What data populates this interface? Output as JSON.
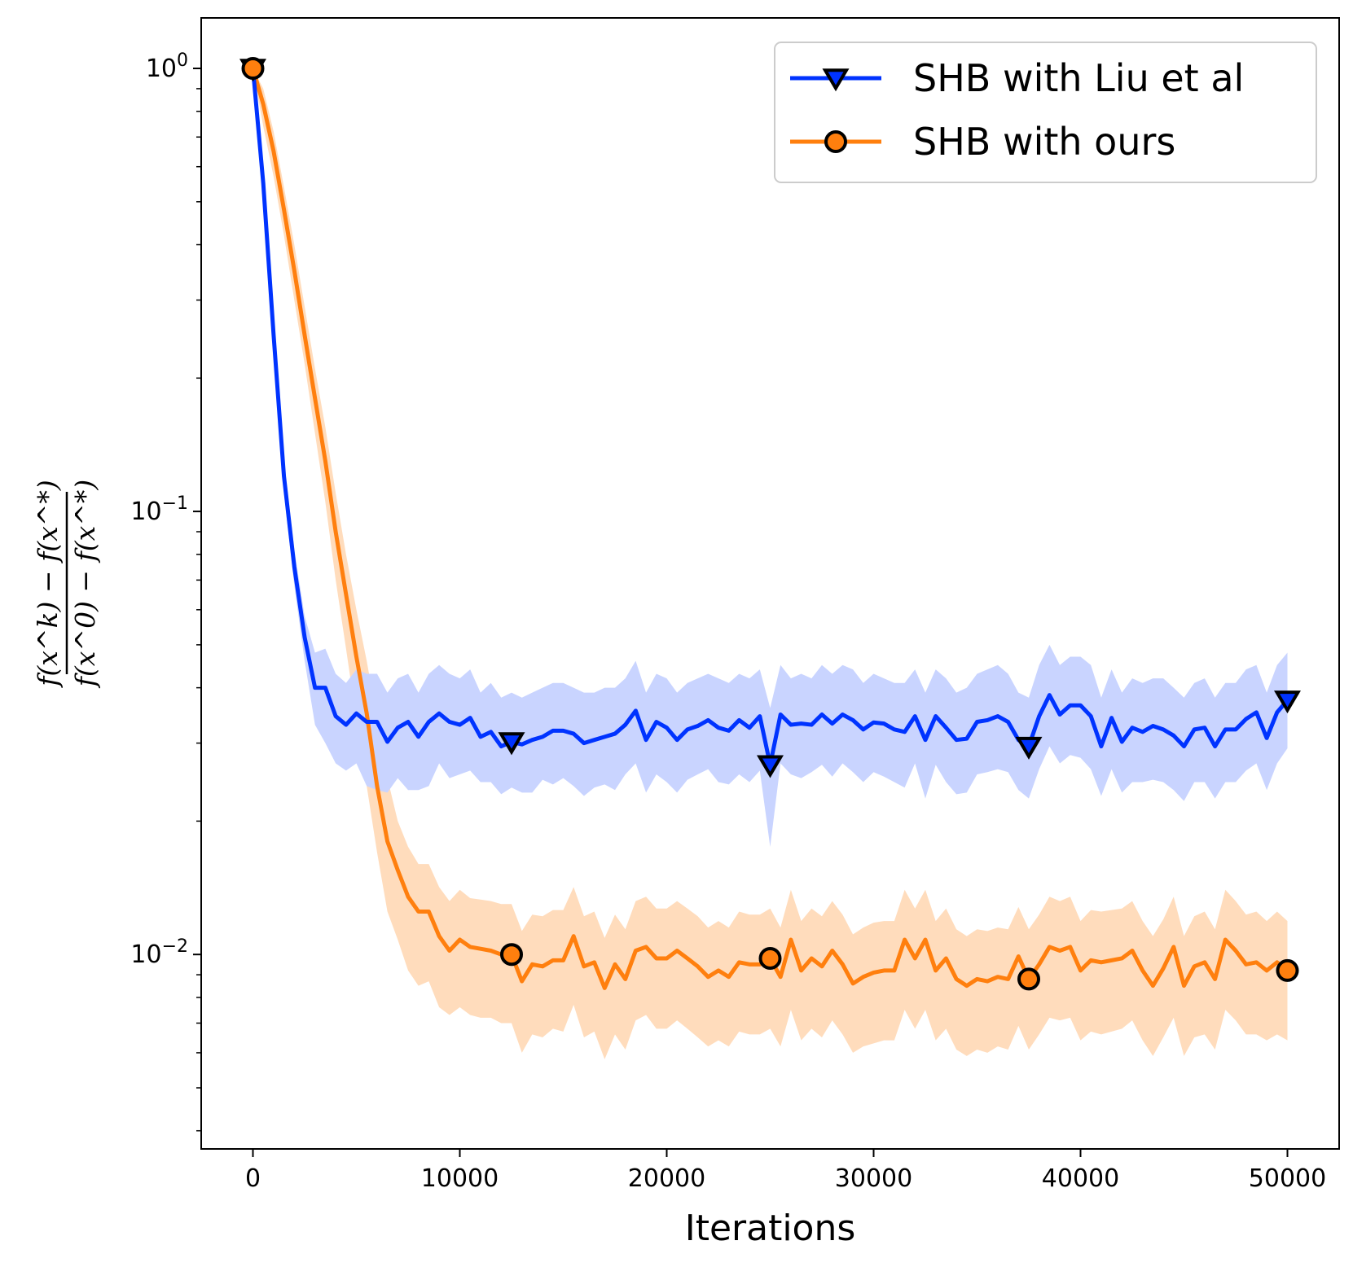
{
  "chart_data": {
    "type": "line",
    "title": "",
    "xlabel": "Iterations",
    "ylabel": {
      "numerator": "f(x^k) − f(x^*)",
      "denominator": "f(x^0) − f(x^*)"
    },
    "xscale": "linear",
    "yscale": "log",
    "xlim": [
      -2500,
      52500
    ],
    "ylim": [
      0.00364,
      1.3
    ],
    "xticks": [
      0,
      10000,
      20000,
      30000,
      40000,
      50000
    ],
    "xtick_labels": [
      "0",
      "10000",
      "20000",
      "30000",
      "40000",
      "50000"
    ],
    "yticks": [
      {
        "value": 1,
        "base": "10",
        "exp": "0"
      },
      {
        "value": 0.1,
        "base": "10",
        "exp": "−1"
      },
      {
        "value": 0.01,
        "base": "10",
        "exp": "−2"
      }
    ],
    "legend_position": "top-right",
    "series": [
      {
        "name": "SHB with Liu et al",
        "color": "#0033ff",
        "band_color": "#c9d4ff",
        "marker": "triangle-down",
        "x": [
          0,
          500,
          1000,
          1500,
          2000,
          2500,
          3000,
          3500,
          4000,
          4500,
          5000,
          5500,
          6000,
          6500,
          7000,
          7500,
          8000,
          8500,
          9000,
          9500,
          10000,
          10500,
          11000,
          11500,
          12000,
          12500,
          13000,
          13500,
          14000,
          14500,
          15000,
          15500,
          16000,
          16500,
          17000,
          17500,
          18000,
          18500,
          19000,
          19500,
          20000,
          20500,
          21000,
          21500,
          22000,
          22500,
          23000,
          23500,
          24000,
          24500,
          25000,
          25500,
          26000,
          26500,
          27000,
          27500,
          28000,
          28500,
          29000,
          29500,
          30000,
          30500,
          31000,
          31500,
          32000,
          32500,
          33000,
          33500,
          34000,
          34500,
          35000,
          35500,
          36000,
          36500,
          37000,
          37500,
          38000,
          38500,
          39000,
          39500,
          40000,
          40500,
          41000,
          41500,
          42000,
          42500,
          43000,
          43500,
          44000,
          44500,
          45000,
          45500,
          46000,
          46500,
          47000,
          47500,
          48000,
          48500,
          49000,
          49500,
          50000
        ],
        "values": [
          1.0,
          0.55,
          0.25,
          0.12,
          0.075,
          0.052,
          0.04,
          0.04,
          0.0345,
          0.033,
          0.035,
          0.0335,
          0.0335,
          0.0302,
          0.0325,
          0.0335,
          0.031,
          0.0335,
          0.035,
          0.0335,
          0.033,
          0.0342,
          0.031,
          0.0318,
          0.0295,
          0.0302,
          0.0298,
          0.0305,
          0.031,
          0.032,
          0.032,
          0.0315,
          0.03,
          0.0305,
          0.031,
          0.0315,
          0.033,
          0.0355,
          0.0305,
          0.0335,
          0.0325,
          0.0305,
          0.0322,
          0.0328,
          0.0338,
          0.0325,
          0.032,
          0.0338,
          0.0325,
          0.0345,
          0.0268,
          0.0348,
          0.033,
          0.0332,
          0.033,
          0.0348,
          0.0332,
          0.0348,
          0.0338,
          0.0322,
          0.0334,
          0.0332,
          0.0322,
          0.0318,
          0.0345,
          0.0305,
          0.0345,
          0.0325,
          0.0305,
          0.0307,
          0.0335,
          0.0338,
          0.0345,
          0.0335,
          0.0305,
          0.0295,
          0.0345,
          0.0385,
          0.0348,
          0.0365,
          0.0365,
          0.0345,
          0.0295,
          0.0342,
          0.0302,
          0.0325,
          0.0318,
          0.0328,
          0.0322,
          0.0312,
          0.0295,
          0.0322,
          0.0325,
          0.0295,
          0.0322,
          0.0322,
          0.034,
          0.0352,
          0.0308,
          0.0352,
          0.0375
        ],
        "lower": [
          1.0,
          0.53,
          0.23,
          0.11,
          0.068,
          0.046,
          0.033,
          0.03,
          0.027,
          0.026,
          0.027,
          0.024,
          0.0235,
          0.0232,
          0.025,
          0.0235,
          0.0235,
          0.024,
          0.027,
          0.025,
          0.0255,
          0.026,
          0.0245,
          0.0245,
          0.023,
          0.0238,
          0.0232,
          0.0232,
          0.0248,
          0.0242,
          0.025,
          0.024,
          0.0228,
          0.0238,
          0.0242,
          0.0235,
          0.0255,
          0.027,
          0.0232,
          0.0255,
          0.0245,
          0.0232,
          0.0248,
          0.0255,
          0.0262,
          0.0245,
          0.0242,
          0.0255,
          0.0245,
          0.026,
          0.0175,
          0.027,
          0.0255,
          0.025,
          0.0258,
          0.0268,
          0.0252,
          0.027,
          0.0258,
          0.0245,
          0.0258,
          0.0252,
          0.0245,
          0.0238,
          0.027,
          0.0225,
          0.0268,
          0.0245,
          0.023,
          0.0232,
          0.0255,
          0.0258,
          0.0262,
          0.0258,
          0.0235,
          0.0225,
          0.0262,
          0.0295,
          0.027,
          0.0282,
          0.0278,
          0.0262,
          0.0228,
          0.0262,
          0.0232,
          0.0245,
          0.0245,
          0.0248,
          0.0245,
          0.0235,
          0.0222,
          0.0245,
          0.0245,
          0.0225,
          0.0245,
          0.0245,
          0.026,
          0.027,
          0.0235,
          0.027,
          0.0292
        ],
        "upper": [
          1.0,
          0.57,
          0.27,
          0.13,
          0.082,
          0.058,
          0.048,
          0.049,
          0.043,
          0.041,
          0.044,
          0.043,
          0.043,
          0.039,
          0.042,
          0.043,
          0.039,
          0.043,
          0.045,
          0.043,
          0.042,
          0.044,
          0.039,
          0.041,
          0.038,
          0.039,
          0.038,
          0.039,
          0.04,
          0.041,
          0.041,
          0.04,
          0.039,
          0.039,
          0.04,
          0.04,
          0.042,
          0.046,
          0.039,
          0.043,
          0.042,
          0.039,
          0.041,
          0.042,
          0.043,
          0.042,
          0.041,
          0.043,
          0.042,
          0.044,
          0.036,
          0.045,
          0.042,
          0.043,
          0.042,
          0.045,
          0.043,
          0.045,
          0.044,
          0.041,
          0.043,
          0.042,
          0.041,
          0.041,
          0.044,
          0.039,
          0.044,
          0.042,
          0.039,
          0.04,
          0.043,
          0.044,
          0.045,
          0.043,
          0.039,
          0.038,
          0.045,
          0.05,
          0.045,
          0.047,
          0.047,
          0.045,
          0.038,
          0.044,
          0.039,
          0.042,
          0.041,
          0.042,
          0.042,
          0.04,
          0.038,
          0.041,
          0.042,
          0.038,
          0.041,
          0.041,
          0.044,
          0.045,
          0.039,
          0.045,
          0.048
        ]
      },
      {
        "name": "SHB with ours",
        "color": "#ff7f0e",
        "band_color": "#ffdcbc",
        "marker": "circle",
        "x": [
          0,
          500,
          1000,
          1500,
          2000,
          2500,
          3000,
          3500,
          4000,
          4500,
          5000,
          5500,
          6000,
          6500,
          7000,
          7500,
          8000,
          8500,
          9000,
          9500,
          10000,
          10500,
          11000,
          11500,
          12000,
          12500,
          13000,
          13500,
          14000,
          14500,
          15000,
          15500,
          16000,
          16500,
          17000,
          17500,
          18000,
          18500,
          19000,
          19500,
          20000,
          20500,
          21000,
          21500,
          22000,
          22500,
          23000,
          23500,
          24000,
          24500,
          25000,
          25500,
          26000,
          26500,
          27000,
          27500,
          28000,
          28500,
          29000,
          29500,
          30000,
          30500,
          31000,
          31500,
          32000,
          32500,
          33000,
          33500,
          34000,
          34500,
          35000,
          35500,
          36000,
          36500,
          37000,
          37500,
          38000,
          38500,
          39000,
          39500,
          40000,
          40500,
          41000,
          41500,
          42000,
          42500,
          43000,
          43500,
          44000,
          44500,
          45000,
          45500,
          46000,
          46500,
          47000,
          47500,
          48000,
          48500,
          49000,
          49500,
          50000
        ],
        "values": [
          1.0,
          0.83,
          0.65,
          0.48,
          0.35,
          0.25,
          0.18,
          0.13,
          0.09,
          0.065,
          0.047,
          0.035,
          0.024,
          0.018,
          0.0155,
          0.0135,
          0.0125,
          0.0125,
          0.011,
          0.0102,
          0.0108,
          0.0104,
          0.0103,
          0.0102,
          0.01,
          0.01,
          0.0087,
          0.0095,
          0.0094,
          0.0097,
          0.0097,
          0.011,
          0.0094,
          0.0096,
          0.0084,
          0.0095,
          0.0088,
          0.0102,
          0.0104,
          0.0098,
          0.0098,
          0.0102,
          0.0098,
          0.0094,
          0.0089,
          0.0092,
          0.0089,
          0.0096,
          0.0095,
          0.0095,
          0.0098,
          0.0089,
          0.0108,
          0.0092,
          0.0098,
          0.0094,
          0.0102,
          0.0095,
          0.0086,
          0.0089,
          0.0091,
          0.0092,
          0.0092,
          0.0108,
          0.0098,
          0.0108,
          0.0092,
          0.0098,
          0.0088,
          0.0085,
          0.0088,
          0.0087,
          0.0089,
          0.0088,
          0.0099,
          0.0088,
          0.0095,
          0.0104,
          0.0102,
          0.0104,
          0.0092,
          0.0097,
          0.0096,
          0.0097,
          0.0098,
          0.0102,
          0.0092,
          0.0085,
          0.0093,
          0.0104,
          0.0085,
          0.0094,
          0.0096,
          0.0088,
          0.0108,
          0.0102,
          0.0095,
          0.0096,
          0.0092,
          0.0096,
          0.0092
        ],
        "lower": [
          1.0,
          0.74,
          0.57,
          0.42,
          0.3,
          0.215,
          0.15,
          0.105,
          0.07,
          0.049,
          0.034,
          0.024,
          0.017,
          0.0125,
          0.0108,
          0.0092,
          0.0085,
          0.0087,
          0.0076,
          0.0073,
          0.0076,
          0.0073,
          0.0072,
          0.0072,
          0.007,
          0.007,
          0.006,
          0.0066,
          0.0065,
          0.0068,
          0.0067,
          0.0077,
          0.0065,
          0.0067,
          0.0058,
          0.0066,
          0.0061,
          0.0071,
          0.0073,
          0.0068,
          0.0068,
          0.0071,
          0.0068,
          0.0065,
          0.0062,
          0.0064,
          0.0062,
          0.0067,
          0.0066,
          0.0066,
          0.0068,
          0.0062,
          0.0075,
          0.0064,
          0.0068,
          0.0065,
          0.0071,
          0.0066,
          0.006,
          0.0062,
          0.0063,
          0.0064,
          0.0064,
          0.0075,
          0.0068,
          0.0075,
          0.0064,
          0.0068,
          0.0061,
          0.0059,
          0.0061,
          0.006,
          0.0062,
          0.0061,
          0.0069,
          0.0061,
          0.0066,
          0.0072,
          0.0071,
          0.0072,
          0.0064,
          0.0067,
          0.0066,
          0.0067,
          0.0068,
          0.0071,
          0.0064,
          0.0059,
          0.0065,
          0.0072,
          0.0059,
          0.0065,
          0.0066,
          0.0061,
          0.0075,
          0.0071,
          0.0066,
          0.0066,
          0.0064,
          0.0066,
          0.0064
        ],
        "upper": [
          1.0,
          0.9,
          0.72,
          0.54,
          0.4,
          0.29,
          0.21,
          0.155,
          0.11,
          0.08,
          0.06,
          0.046,
          0.034,
          0.025,
          0.02,
          0.0175,
          0.016,
          0.016,
          0.0142,
          0.0132,
          0.014,
          0.0134,
          0.0133,
          0.0132,
          0.013,
          0.013,
          0.0113,
          0.0123,
          0.0122,
          0.0126,
          0.0126,
          0.0142,
          0.0122,
          0.0125,
          0.0109,
          0.0123,
          0.0114,
          0.0132,
          0.0135,
          0.0127,
          0.0127,
          0.0132,
          0.0127,
          0.0122,
          0.0115,
          0.0119,
          0.0115,
          0.0125,
          0.0123,
          0.0123,
          0.0127,
          0.0115,
          0.014,
          0.0119,
          0.0127,
          0.0122,
          0.0132,
          0.0123,
          0.0111,
          0.0115,
          0.0118,
          0.0119,
          0.0119,
          0.014,
          0.0127,
          0.014,
          0.0119,
          0.0127,
          0.0114,
          0.011,
          0.0114,
          0.0113,
          0.0115,
          0.0114,
          0.0128,
          0.0114,
          0.0123,
          0.0135,
          0.0132,
          0.0135,
          0.0119,
          0.0126,
          0.0125,
          0.0126,
          0.0127,
          0.0132,
          0.0119,
          0.011,
          0.012,
          0.0135,
          0.011,
          0.0122,
          0.0125,
          0.0114,
          0.014,
          0.0132,
          0.0123,
          0.0125,
          0.0119,
          0.0125,
          0.0119
        ]
      }
    ]
  }
}
